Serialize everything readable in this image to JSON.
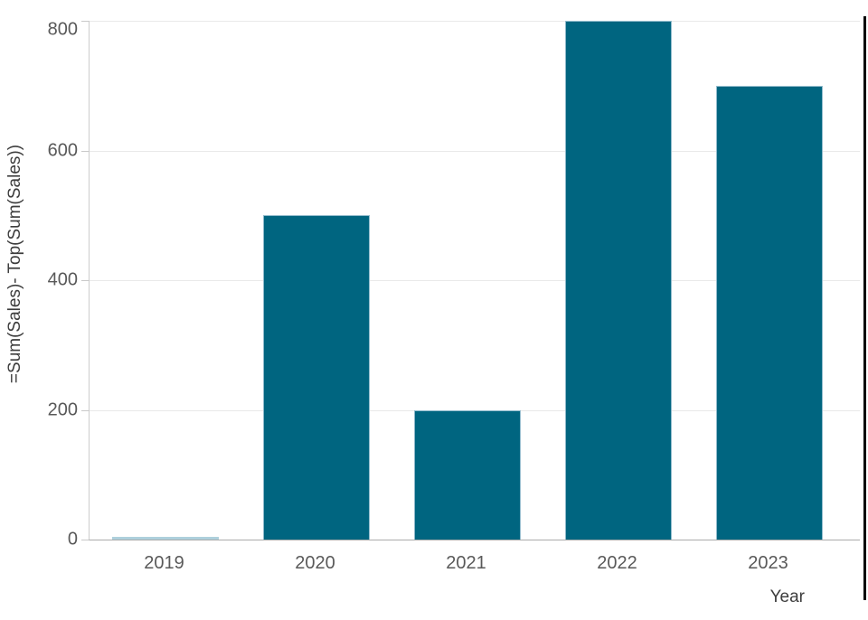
{
  "chart_data": {
    "type": "bar",
    "title": "",
    "categories": [
      "2019",
      "2020",
      "2021",
      "2022",
      "2023"
    ],
    "values": [
      0,
      500,
      200,
      800,
      700
    ],
    "series_name": "=Sum(Sales)- Top(Sum(Sales))",
    "xlabel": "Year",
    "ylabel": "=Sum(Sales)- Top(Sum(Sales))",
    "ylim": [
      0,
      800
    ],
    "yticks": [
      0,
      200,
      400,
      600,
      800
    ],
    "grid": true,
    "legend_position": "none",
    "bar_color": "#006580",
    "bar_border_color": "#93bccd",
    "zero_bar_color": "#aed0dc",
    "gridline_color": "#e9e9e9",
    "y_axis_line_color": "#cdcdcd",
    "x_axis_line_color": "#ababab",
    "tick_label_color": "#595959",
    "axis_title_color": "#3d3d3d"
  },
  "decor": {
    "right_edge_line_color": "#000000"
  }
}
